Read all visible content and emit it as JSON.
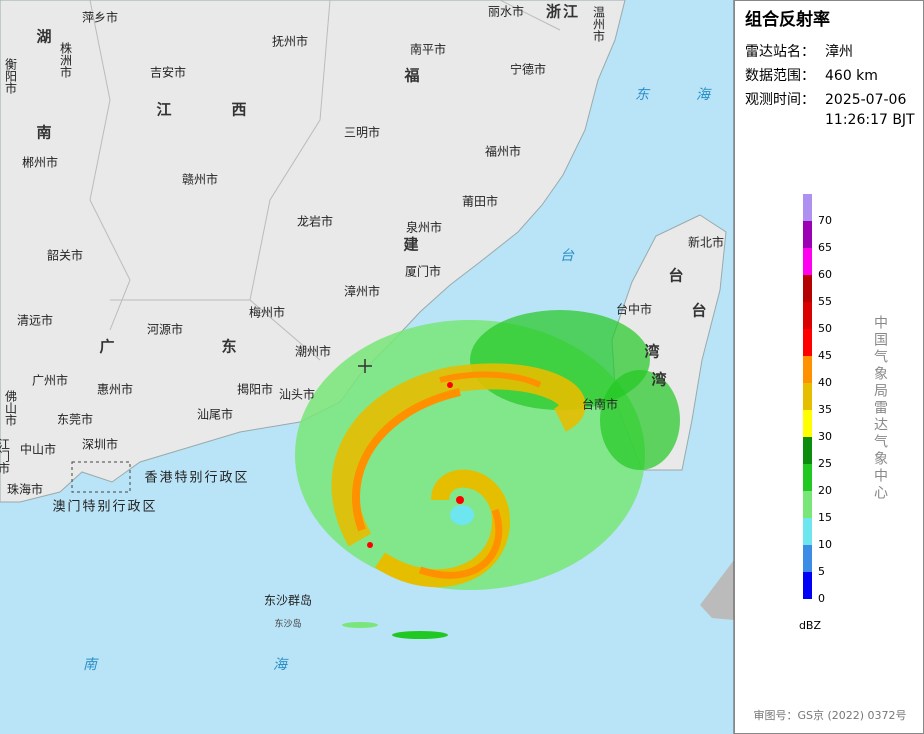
{
  "map": {
    "labels": [
      "萍乡市",
      "湖",
      "南",
      "衡阳市",
      "株洲市",
      "抚州市",
      "南平市",
      "丽水市",
      "浙江",
      "温州市",
      "宁德市",
      "吉安市",
      "福",
      "江",
      "西",
      "东",
      "海",
      "郴州市",
      "三明市",
      "福州市",
      "赣州市",
      "莆田市",
      "龙岩市",
      "泉州市",
      "建",
      "新北市",
      "台",
      "韶关市",
      "厦门市",
      "台",
      "漳州市",
      "梅州市",
      "台中市",
      "台",
      "清远市",
      "河源市",
      "广",
      "东",
      "潮州市",
      "湾",
      "湾",
      "广州市",
      "惠州市",
      "揭阳市",
      "汕头市",
      "台南市",
      "佛山市",
      "汕尾市",
      "东莞市",
      "深圳市",
      "中山市",
      "江门市",
      "香港特别行政区",
      "珠海市",
      "澳门特别行政区",
      "东沙群岛",
      "东沙岛",
      "南",
      "海"
    ]
  },
  "panel": {
    "title": "组合反射率",
    "fields": [
      {
        "key": "雷达站名：",
        "lines": [
          "漳州"
        ]
      },
      {
        "key": "数据范围：",
        "lines": [
          "460 km"
        ]
      },
      {
        "key": "观测时间：",
        "lines": [
          "2025-07-06",
          "11:26:17 BJT"
        ]
      }
    ]
  },
  "legend": {
    "levels": [
      0,
      5,
      10,
      15,
      20,
      25,
      30,
      35,
      40,
      45,
      50,
      55,
      60,
      65,
      70
    ],
    "colors": [
      "#0000f6",
      "#3c8ce6",
      "#6ee6f0",
      "#78e678",
      "#22c822",
      "#0c8c0c",
      "#ffff00",
      "#e6be00",
      "#ff9000",
      "#ff0000",
      "#d80000",
      "#b40000",
      "#ff00f0",
      "#9c00b4",
      "#ae90f0"
    ],
    "lim": [
      0,
      75
    ],
    "unit": "dBZ"
  },
  "credit": "中国气象局雷达气象中心",
  "footer": "审图号：GS京 (2022) 0372号"
}
